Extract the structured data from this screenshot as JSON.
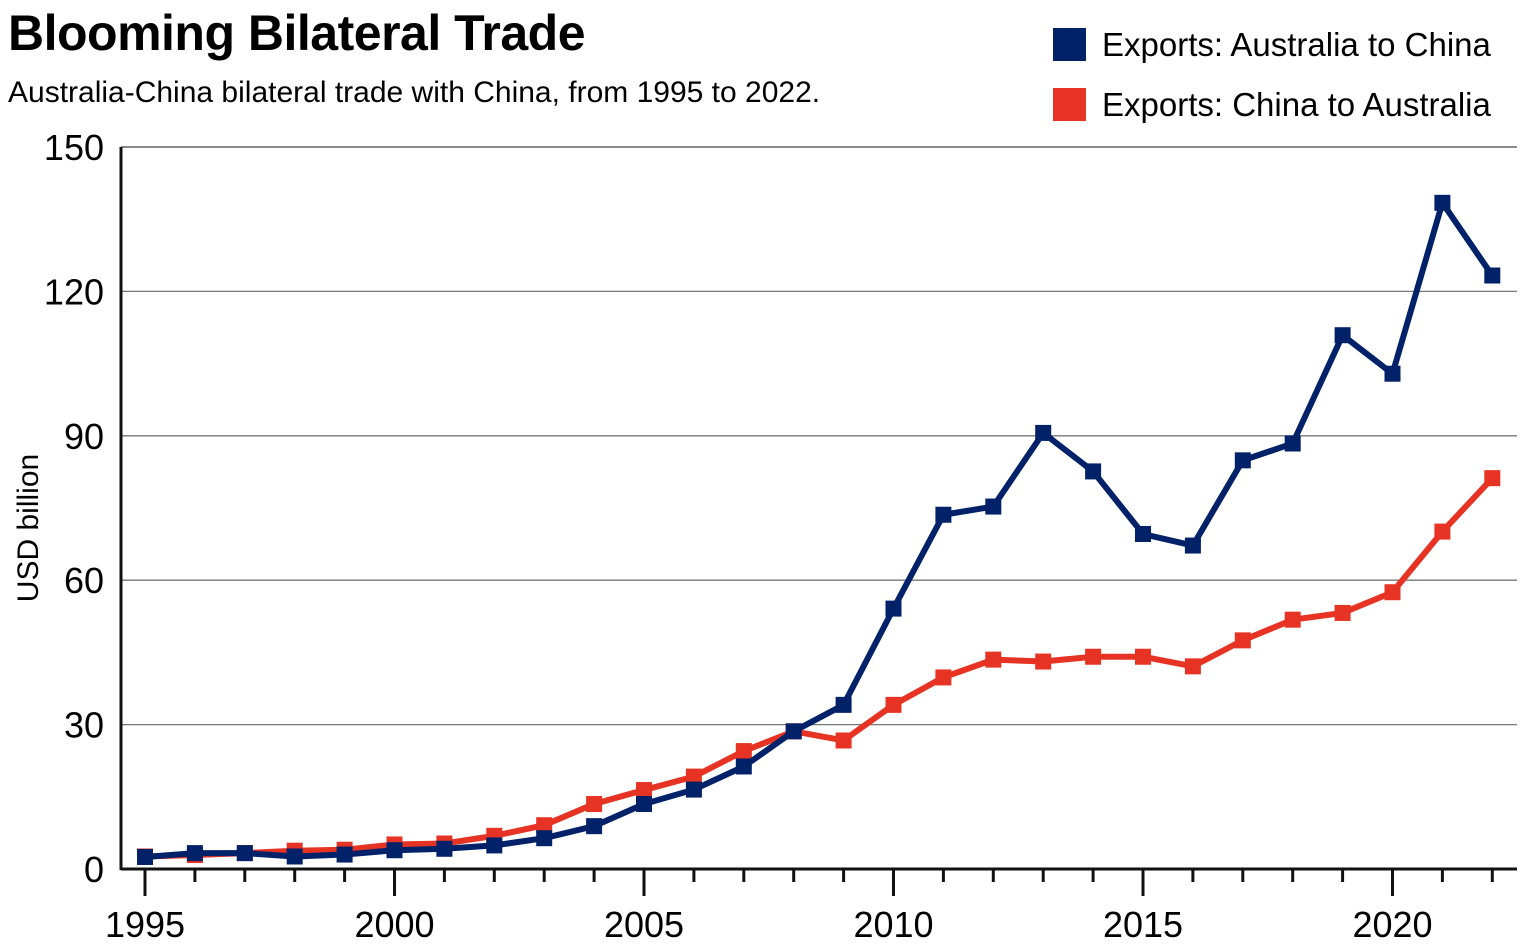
{
  "chart_data": {
    "type": "line",
    "title": "Blooming Bilateral Trade",
    "subtitle": "Australia-China bilateral trade with China, from 1995 to 2022.",
    "xlabel": "",
    "ylabel": "USD billion",
    "x": [
      1995,
      1996,
      1997,
      1998,
      1999,
      2000,
      2001,
      2002,
      2003,
      2004,
      2005,
      2006,
      2007,
      2008,
      2009,
      2010,
      2011,
      2012,
      2013,
      2014,
      2015,
      2016,
      2017,
      2018,
      2019,
      2020,
      2021,
      2022
    ],
    "xlim": [
      1994.5,
      2022.5
    ],
    "ylim": [
      0,
      150
    ],
    "x_ticks_major": [
      1995,
      2000,
      2005,
      2010,
      2015,
      2020
    ],
    "x_tick_labels": [
      "1995",
      "2000",
      "2005",
      "2010",
      "2015",
      "2020"
    ],
    "y_ticks": [
      0,
      30,
      60,
      90,
      120,
      150
    ],
    "y_tick_labels": [
      "0",
      "30",
      "60",
      "90",
      "120",
      "150"
    ],
    "grid": "horizontal",
    "legend_position": "top-right",
    "series": [
      {
        "name": "Exports: Australia to China",
        "color": "#012169",
        "marker": "square",
        "values": [
          2.5,
          3.3,
          3.3,
          2.6,
          3.0,
          3.9,
          4.2,
          4.9,
          6.4,
          8.9,
          13.5,
          16.5,
          21.3,
          28.6,
          34.1,
          54.1,
          73.6,
          75.3,
          90.6,
          82.6,
          69.6,
          67.2,
          84.9,
          88.4,
          110.9,
          102.9,
          138.4,
          123.3
        ]
      },
      {
        "name": "Exports: China to Australia",
        "color": "#E63323",
        "marker": "square",
        "values": [
          2.6,
          2.9,
          3.3,
          3.8,
          4.0,
          5.1,
          5.3,
          6.9,
          9.1,
          13.5,
          16.4,
          19.2,
          24.5,
          28.6,
          26.7,
          34.1,
          39.8,
          43.5,
          43.1,
          44.1,
          44.1,
          42.1,
          47.5,
          51.8,
          53.2,
          57.5,
          70.1,
          81.2
        ]
      }
    ]
  }
}
